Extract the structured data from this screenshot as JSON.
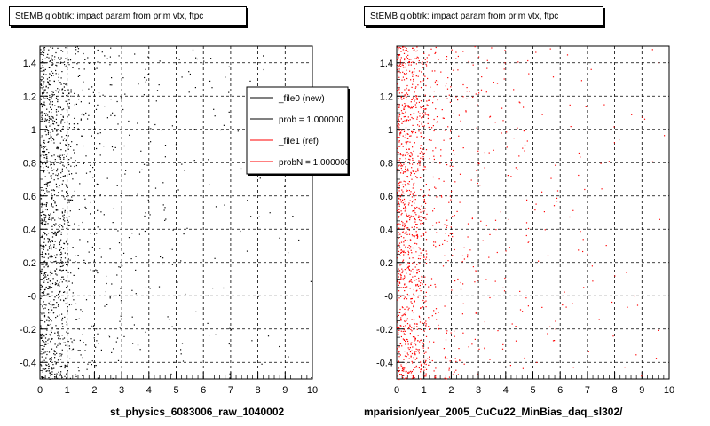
{
  "chart_data": [
    {
      "type": "scatter",
      "title": "StEMB globtrk: impact param from prim vtx, ftpc",
      "xlabel": "st_physics_6083006_raw_1040002",
      "ylabel": "",
      "xlim": [
        0,
        10
      ],
      "ylim": [
        -0.5,
        1.5
      ],
      "x_ticks": [
        "0",
        "1",
        "2",
        "3",
        "4",
        "5",
        "6",
        "7",
        "8",
        "9",
        "10"
      ],
      "y_ticks": [
        "-0.4",
        "-0.2",
        "-0",
        "0.2",
        "0.4",
        "0.6",
        "0.8",
        "1",
        "1.2",
        "1.4"
      ],
      "grid": true,
      "point_color": "#000000",
      "legend": {
        "placement": "top-right",
        "entries": [
          {
            "label": "_file0 (new)",
            "color": "#000000"
          },
          {
            "label": "prob = 1.000000",
            "color": "#000000"
          },
          {
            "label": "_file1 (ref)",
            "color": "#ff0000"
          },
          {
            "label": "probN = 1.000000",
            "color": "#ff0000"
          }
        ]
      },
      "density_profile": {
        "x": [
          0.1,
          0.3,
          0.5,
          0.7,
          0.9,
          1.25,
          1.75,
          2.5,
          3.5,
          4.5,
          6,
          8,
          9.5
        ],
        "relative_density": [
          100,
          95,
          80,
          65,
          55,
          18,
          12,
          7,
          4,
          3,
          2,
          1,
          0.8
        ]
      }
    },
    {
      "type": "scatter",
      "title": "StEMB globtrk: impact param from prim vtx, ftpc",
      "xlabel": "mparision/year_2005_CuCu22_MinBias_daq_sl302/",
      "ylabel": "",
      "xlim": [
        0,
        10
      ],
      "ylim": [
        -0.5,
        1.5
      ],
      "x_ticks": [
        "0",
        "1",
        "2",
        "3",
        "4",
        "5",
        "6",
        "7",
        "8",
        "9",
        "10"
      ],
      "y_ticks": [
        "-0.4",
        "-0.2",
        "-0",
        "0.2",
        "0.4",
        "0.6",
        "0.8",
        "1",
        "1.2",
        "1.4"
      ],
      "grid": true,
      "point_color": "#ff0000",
      "density_profile": {
        "x": [
          0.1,
          0.3,
          0.5,
          0.7,
          0.9,
          1.25,
          1.75,
          2.5,
          3.5,
          4.5,
          6,
          8,
          9.5
        ],
        "relative_density": [
          100,
          95,
          80,
          65,
          55,
          18,
          12,
          7,
          4,
          3,
          2,
          1,
          0.8
        ]
      }
    }
  ]
}
